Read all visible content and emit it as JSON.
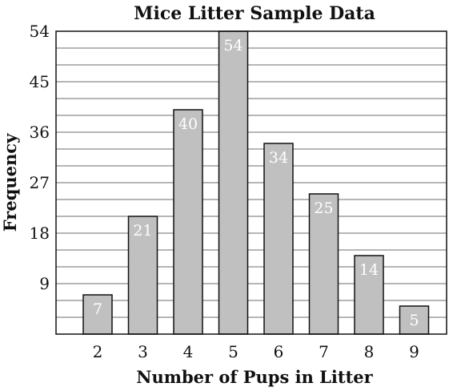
{
  "chart_data": {
    "type": "bar",
    "title": "Mice Litter Sample Data",
    "xlabel": "Number of Pups in Litter",
    "ylabel": "Frequency",
    "categories": [
      "2",
      "3",
      "4",
      "5",
      "6",
      "7",
      "8",
      "9"
    ],
    "values": [
      7,
      21,
      40,
      54,
      34,
      25,
      14,
      5
    ],
    "data_labels": [
      "7",
      "21",
      "40",
      "54",
      "34",
      "25",
      "14",
      "5"
    ],
    "ylim": [
      0,
      54
    ],
    "y_ticks": [
      "9",
      "18",
      "27",
      "36",
      "45",
      "54"
    ],
    "y_tick_values": [
      9,
      18,
      27,
      36,
      45,
      54
    ],
    "minor_grid_step": 3,
    "grid": true,
    "colors": {
      "bar_fill": "#c0c0c0",
      "bar_stroke": "#111111",
      "label": "#ffffff"
    }
  }
}
